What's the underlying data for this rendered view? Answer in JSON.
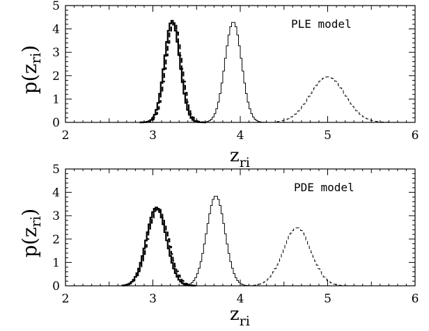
{
  "chart_data": [
    {
      "type": "line",
      "annotation": "PLE model",
      "xlabel": "z",
      "xlabel_sub": "ri",
      "ylabel": "p(z",
      "ylabel_sub": "ri",
      "ylabel_close": ")",
      "xlim": [
        2,
        6
      ],
      "ylim": [
        0,
        5
      ],
      "xticks": [
        2,
        3,
        4,
        5,
        6
      ],
      "yticks": [
        0,
        1,
        2,
        3,
        4,
        5
      ],
      "grid": false,
      "series": [
        {
          "style": "thick-solid",
          "mu": 3.22,
          "sigma": 0.088,
          "peak": 4.35,
          "range": [
            2.85,
            3.6
          ]
        },
        {
          "style": "thick-dashed",
          "mu": 3.24,
          "sigma": 0.09,
          "peak": 4.25,
          "range": [
            2.85,
            3.62
          ]
        },
        {
          "style": "thin-solid",
          "mu": 3.92,
          "sigma": 0.095,
          "peak": 4.3,
          "range": [
            3.5,
            4.38
          ]
        },
        {
          "style": "thin-dashed",
          "mu": 5.0,
          "sigma": 0.2,
          "peak": 1.95,
          "range": [
            4.42,
            5.75
          ]
        }
      ]
    },
    {
      "type": "line",
      "annotation": "PDE model",
      "xlabel": "z",
      "xlabel_sub": "ri",
      "ylabel": "p(z",
      "ylabel_sub": "ri",
      "ylabel_close": ")",
      "xlim": [
        2,
        6
      ],
      "ylim": [
        0,
        5
      ],
      "xticks": [
        2,
        3,
        4,
        5,
        6
      ],
      "yticks": [
        0,
        1,
        2,
        3,
        4,
        5
      ],
      "grid": false,
      "series": [
        {
          "style": "thick-solid",
          "mu": 3.04,
          "sigma": 0.115,
          "peak": 3.35,
          "range": [
            2.65,
            3.48
          ]
        },
        {
          "style": "thick-dashed",
          "mu": 3.06,
          "sigma": 0.12,
          "peak": 3.3,
          "range": [
            2.65,
            3.5
          ]
        },
        {
          "style": "thin-solid",
          "mu": 3.72,
          "sigma": 0.105,
          "peak": 3.85,
          "range": [
            3.28,
            4.15
          ]
        },
        {
          "style": "thin-dashed",
          "mu": 4.65,
          "sigma": 0.16,
          "peak": 2.48,
          "range": [
            4.15,
            5.25
          ]
        }
      ]
    }
  ]
}
